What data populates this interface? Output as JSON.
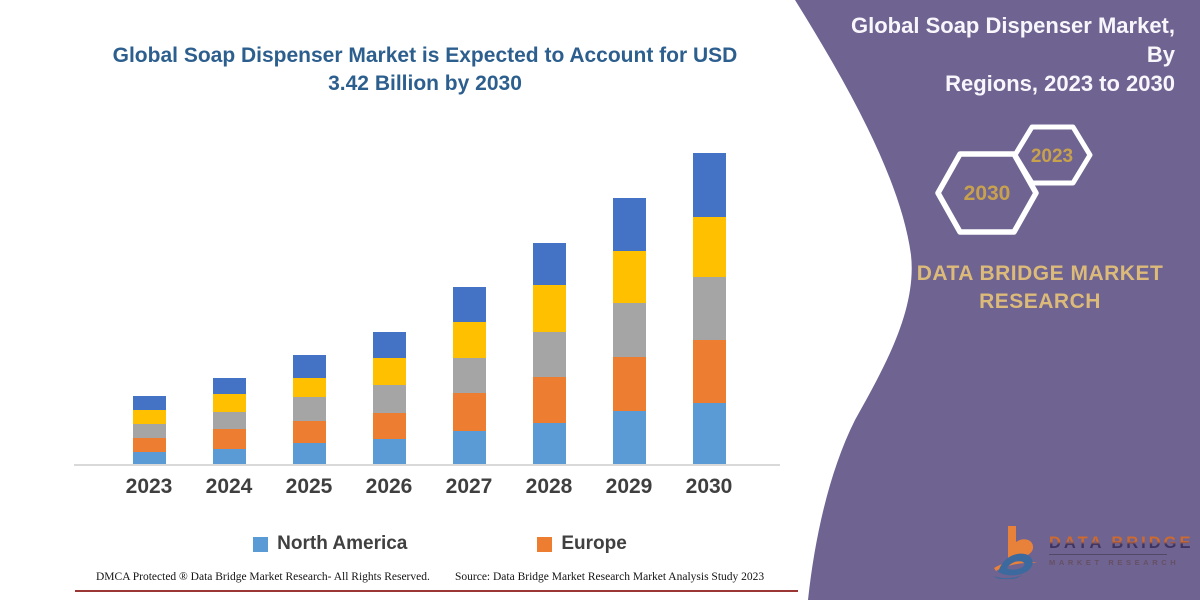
{
  "chart_data": {
    "type": "bar",
    "stacked": true,
    "title": "Global Soap Dispenser Market is Expected to Account for USD 3.42 Billion by 2030",
    "xlabel": "",
    "ylabel": "",
    "unit": "USD Billion",
    "ylim": [
      0,
      3.5
    ],
    "grid": false,
    "y_axis_visible": false,
    "legend_position": "bottom",
    "categories": [
      "2023",
      "2024",
      "2025",
      "2026",
      "2027",
      "2028",
      "2029",
      "2030"
    ],
    "series": [
      {
        "name": "North America",
        "color": "#5B9BD5",
        "in_legend": true,
        "values": [
          0.14,
          0.18,
          0.24,
          0.28,
          0.37,
          0.46,
          0.59,
          0.68
        ]
      },
      {
        "name": "Europe",
        "color": "#ED7D31",
        "in_legend": true,
        "values": [
          0.16,
          0.21,
          0.24,
          0.29,
          0.42,
          0.51,
          0.59,
          0.69
        ]
      },
      {
        "name": "Series 3 (gray, unlabeled)",
        "color": "#A5A5A5",
        "in_legend": false,
        "values": [
          0.15,
          0.19,
          0.27,
          0.31,
          0.38,
          0.49,
          0.6,
          0.69
        ]
      },
      {
        "name": "Series 4 (yellow, unlabeled)",
        "color": "#FFC000",
        "in_legend": false,
        "values": [
          0.15,
          0.2,
          0.2,
          0.29,
          0.4,
          0.51,
          0.57,
          0.66
        ]
      },
      {
        "name": "Series 5 (blue, unlabeled)",
        "color": "#4472C4",
        "in_legend": false,
        "values": [
          0.16,
          0.18,
          0.26,
          0.29,
          0.38,
          0.46,
          0.58,
          0.7
        ]
      }
    ],
    "stack_totals": [
      0.76,
      0.96,
      1.21,
      1.46,
      1.95,
      2.43,
      2.93,
      3.42
    ],
    "annotation": "2030 total = USD 3.42 Billion"
  },
  "chart": {
    "title_line1": "Global Soap Dispenser Market is Expected to Account for USD",
    "title_line2": "3.42 Billion by 2030"
  },
  "legend": {
    "items": [
      {
        "label": "North America",
        "color": "#5B9BD5"
      },
      {
        "label": "Europe",
        "color": "#ED7D31"
      }
    ]
  },
  "footer": {
    "left": "DMCA Protected ® Data Bridge Market Research-  All Rights Reserved.",
    "right": "Source: Data Bridge Market Research  Market Analysis Study 2023"
  },
  "side_panel": {
    "heading_line1": "Global Soap Dispenser Market, By",
    "heading_line2": "Regions, 2023 to 2030",
    "hexagon_back_year": "2023",
    "hexagon_front_year": "2030",
    "brand_text": "DATA BRIDGE MARKET RESEARCH",
    "logo_name": "DATA BRIDGE",
    "logo_subtitle": "MARKET RESEARCH",
    "colors": {
      "panel_purple": "#6e6391",
      "hexagon_stroke": "#ffffff",
      "hexagon_year_gold": "#c8a14f",
      "brand_gold": "#dcba79",
      "title_blue": "#2d5f8e",
      "footer_rule_red": "#9a3734"
    }
  }
}
